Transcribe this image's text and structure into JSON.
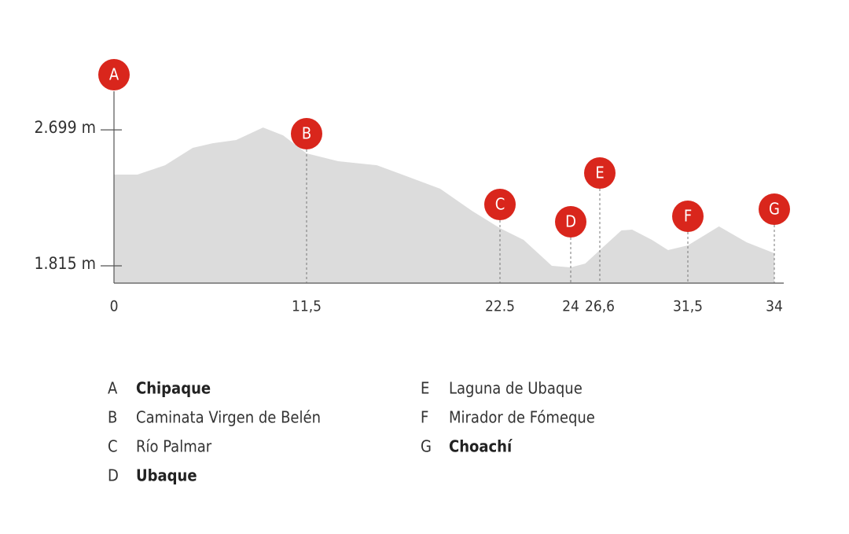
{
  "chart_data": {
    "type": "area",
    "color": "#dcdcdc",
    "x": [
      0,
      1.4,
      3.05,
      4.7,
      5.9,
      7.3,
      8.9,
      10.1,
      11.5,
      13.3,
      15.5,
      17.3,
      19.1,
      20.9,
      22.5,
      23.0,
      23.6,
      24.0,
      25.3,
      26.6,
      27.8,
      28.4,
      29.5,
      30.4,
      31.5,
      32.4,
      33.2,
      34.0
    ],
    "values": [
      2408,
      2408,
      2469,
      2582,
      2612,
      2633,
      2714,
      2663,
      2546,
      2495,
      2469,
      2393,
      2316,
      2173,
      2060,
      1984,
      1815,
      1805,
      1830,
      1917,
      2045,
      2050,
      1984,
      1917,
      1948,
      2071,
      1968,
      1897
    ],
    "xlim": [
      0,
      34
    ],
    "xticks": [
      0,
      {
        "value": 11.5,
        "label": "11,5"
      },
      {
        "value": 22.5,
        "label": "22.5"
      },
      24,
      {
        "value": 26.6,
        "label": "26,6"
      },
      {
        "value": 31.5,
        "label": "31,5"
      },
      34
    ],
    "ylim": [
      1700,
      2950
    ],
    "yticks": [
      {
        "value": 2699,
        "label": "2.699 m"
      },
      {
        "value": 1815,
        "label": "1.815 m"
      }
    ],
    "marker_color": "#d9261c",
    "points": [
      {
        "letter": "A",
        "name": "Chipaque",
        "km": 0,
        "bold": true
      },
      {
        "letter": "B",
        "name": "Caminata Virgen de Belén",
        "km": 11.5,
        "bold": false
      },
      {
        "letter": "C",
        "name": "Río Palmar",
        "km": 22.5,
        "bold": false
      },
      {
        "letter": "D",
        "name": "Ubaque",
        "km": 24,
        "bold": true
      },
      {
        "letter": "E",
        "name": "Laguna de Ubaque",
        "km": 26.6,
        "bold": false
      },
      {
        "letter": "F",
        "name": "Mirador de Fómeque",
        "km": 31.5,
        "bold": false
      },
      {
        "letter": "G",
        "name": "Choachí",
        "km": 34,
        "bold": true
      }
    ]
  }
}
